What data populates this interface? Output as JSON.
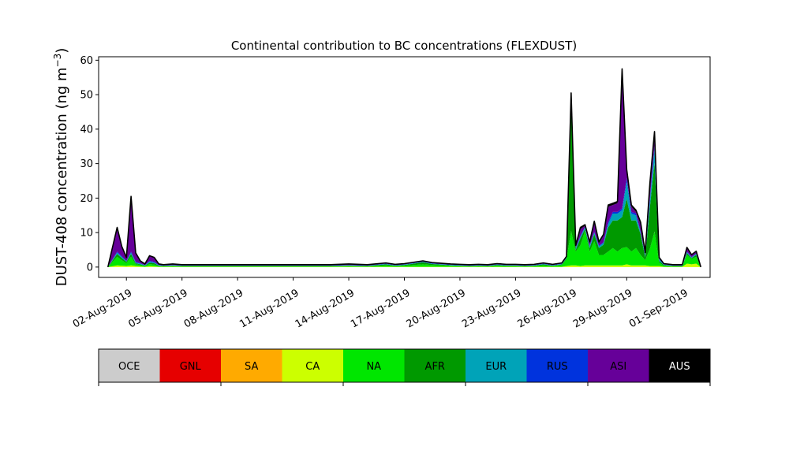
{
  "chart_data": {
    "type": "area",
    "stacked": true,
    "title": "Continental contribution to BC concentrations (FLEXDUST)",
    "ylabel_main": "DUST-408 concentration (ng m",
    "ylabel_sup": "−3",
    "ylabel_close": ")",
    "xlabel": "",
    "xlim": [
      "2019-07-31T12:00",
      "2019-09-02T12:00"
    ],
    "ylim": [
      -3,
      61
    ],
    "yticks": [
      0,
      10,
      20,
      30,
      40,
      50,
      60
    ],
    "xticks": [
      "2019-08-02",
      "2019-08-05",
      "2019-08-08",
      "2019-08-11",
      "2019-08-14",
      "2019-08-17",
      "2019-08-20",
      "2019-08-23",
      "2019-08-26",
      "2019-08-29",
      "2019-09-01"
    ],
    "xtick_labels": [
      "02-Aug-2019",
      "05-Aug-2019",
      "08-Aug-2019",
      "11-Aug-2019",
      "14-Aug-2019",
      "17-Aug-2019",
      "20-Aug-2019",
      "23-Aug-2019",
      "26-Aug-2019",
      "29-Aug-2019",
      "01-Sep-2019"
    ],
    "grid": false,
    "legend_position": "below",
    "legend": [
      {
        "name": "OCE",
        "color": "#cccccc"
      },
      {
        "name": "GNL",
        "color": "#e60000"
      },
      {
        "name": "SA",
        "color": "#ffaa00"
      },
      {
        "name": "CA",
        "color": "#ccff00"
      },
      {
        "name": "NA",
        "color": "#00e600"
      },
      {
        "name": "AFR",
        "color": "#009900"
      },
      {
        "name": "EUR",
        "color": "#00a3b8"
      },
      {
        "name": "RUS",
        "color": "#0033dd"
      },
      {
        "name": "ASI",
        "color": "#660099"
      },
      {
        "name": "AUS",
        "color": "#000000"
      }
    ],
    "x": [
      "2019-08-01T00:00",
      "2019-08-01T12:00",
      "2019-08-01T18:00",
      "2019-08-02T00:00",
      "2019-08-02T06:00",
      "2019-08-02T12:00",
      "2019-08-02T18:00",
      "2019-08-03T00:00",
      "2019-08-03T06:00",
      "2019-08-03T12:00",
      "2019-08-03T18:00",
      "2019-08-04T00:00",
      "2019-08-04T12:00",
      "2019-08-05T00:00",
      "2019-08-06T00:00",
      "2019-08-07T00:00",
      "2019-08-08T00:00",
      "2019-08-09T00:00",
      "2019-08-10T00:00",
      "2019-08-11T00:00",
      "2019-08-12T00:00",
      "2019-08-13T00:00",
      "2019-08-14T00:00",
      "2019-08-15T00:00",
      "2019-08-16T00:00",
      "2019-08-16T12:00",
      "2019-08-17T00:00",
      "2019-08-17T12:00",
      "2019-08-18T00:00",
      "2019-08-18T12:00",
      "2019-08-19T00:00",
      "2019-08-19T12:00",
      "2019-08-20T00:00",
      "2019-08-20T12:00",
      "2019-08-21T00:00",
      "2019-08-21T12:00",
      "2019-08-22T00:00",
      "2019-08-22T12:00",
      "2019-08-23T00:00",
      "2019-08-23T12:00",
      "2019-08-24T00:00",
      "2019-08-24T12:00",
      "2019-08-25T00:00",
      "2019-08-25T12:00",
      "2019-08-25T18:00",
      "2019-08-26T00:00",
      "2019-08-26T06:00",
      "2019-08-26T12:00",
      "2019-08-26T18:00",
      "2019-08-27T00:00",
      "2019-08-27T06:00",
      "2019-08-27T12:00",
      "2019-08-27T18:00",
      "2019-08-28T00:00",
      "2019-08-28T06:00",
      "2019-08-28T12:00",
      "2019-08-28T18:00",
      "2019-08-29T00:00",
      "2019-08-29T06:00",
      "2019-08-29T12:00",
      "2019-08-29T18:00",
      "2019-08-30T00:00",
      "2019-08-30T06:00",
      "2019-08-30T12:00",
      "2019-08-30T18:00",
      "2019-08-31T00:00",
      "2019-08-31T12:00",
      "2019-09-01T00:00",
      "2019-09-01T06:00",
      "2019-09-01T12:00",
      "2019-09-01T18:00",
      "2019-09-02T00:00"
    ],
    "series": [
      {
        "name": "CA",
        "values": [
          0,
          0.5,
          0.4,
          0.3,
          0.5,
          0.3,
          0.2,
          0.1,
          0.3,
          0.2,
          0.1,
          0.1,
          0.1,
          0.1,
          0.1,
          0.1,
          0.1,
          0.1,
          0.1,
          0.1,
          0.1,
          0.1,
          0.1,
          0.1,
          0.1,
          0.1,
          0.1,
          0.1,
          0.1,
          0.1,
          0.1,
          0.1,
          0.1,
          0.1,
          0.1,
          0.1,
          0.1,
          0.1,
          0.1,
          0.1,
          0.1,
          0.1,
          0.1,
          0.1,
          0.3,
          0.5,
          0.5,
          0.3,
          0.5,
          0.5,
          0.5,
          0.5,
          0.5,
          0.5,
          0.5,
          0.5,
          0.5,
          0.8,
          0.5,
          0.5,
          0.5,
          0.5,
          0.3,
          0.3,
          0.3,
          0.1,
          0.1,
          0.1,
          1.0,
          0.8,
          1.0,
          0
        ]
      },
      {
        "name": "NA",
        "values": [
          0,
          2.5,
          1.6,
          0.8,
          2.5,
          0.5,
          0.4,
          0.2,
          0.6,
          0.5,
          0.2,
          0.1,
          0.2,
          0.1,
          0.1,
          0.1,
          0.1,
          0.1,
          0.1,
          0.1,
          0.1,
          0.1,
          0.2,
          0.1,
          0.4,
          0.2,
          0.3,
          0.5,
          0.7,
          0.5,
          0.4,
          0.3,
          0.2,
          0.1,
          0.2,
          0.1,
          0.3,
          0.2,
          0.2,
          0.1,
          0.2,
          0.4,
          0.2,
          0.5,
          2.0,
          10.0,
          4.0,
          6.0,
          10.0,
          4.0,
          7.0,
          3.0,
          3.0,
          4.0,
          5.0,
          4.0,
          5.0,
          5.0,
          4.0,
          5.0,
          3.0,
          1.5,
          5.0,
          10.0,
          1.0,
          0.3,
          0.1,
          0.1,
          2.5,
          1.5,
          2.0,
          0
        ]
      },
      {
        "name": "AFR",
        "values": [
          0,
          0.8,
          0.6,
          0.4,
          0.8,
          0.3,
          0.2,
          0.1,
          0.4,
          0.4,
          0.1,
          0.1,
          0.1,
          0.1,
          0.1,
          0.1,
          0.1,
          0.1,
          0.1,
          0.1,
          0.1,
          0.1,
          0.1,
          0.1,
          0.3,
          0.1,
          0.2,
          0.4,
          0.6,
          0.3,
          0.2,
          0.1,
          0.1,
          0.1,
          0.1,
          0.1,
          0.2,
          0.1,
          0.1,
          0.1,
          0.1,
          0.3,
          0.1,
          0.2,
          0.3,
          36.0,
          0.5,
          2.0,
          0.5,
          1.0,
          2.0,
          2.0,
          3.0,
          7.0,
          8.0,
          9.0,
          9.0,
          14.0,
          9.0,
          8.0,
          6.0,
          0.8,
          12.0,
          20.0,
          0.5,
          0.2,
          0.1,
          0.1,
          0.5,
          0.3,
          0.5,
          0
        ]
      },
      {
        "name": "EUR",
        "values": [
          0,
          0.4,
          0.3,
          0.2,
          0.4,
          0.2,
          0.2,
          0.1,
          0.3,
          0.2,
          0.1,
          0.1,
          0.1,
          0.1,
          0.1,
          0.1,
          0.1,
          0.1,
          0.1,
          0.1,
          0.1,
          0.1,
          0.1,
          0.1,
          0.1,
          0.1,
          0.1,
          0.1,
          0.1,
          0.1,
          0.1,
          0.1,
          0.1,
          0.1,
          0.1,
          0.1,
          0.1,
          0.1,
          0.1,
          0.1,
          0.1,
          0.1,
          0.1,
          0.1,
          0.2,
          2.5,
          0.5,
          0.5,
          0.5,
          0.5,
          0.5,
          0.5,
          0.5,
          1.0,
          2.0,
          2.0,
          2.0,
          5.0,
          2.0,
          1.5,
          0.5,
          0.5,
          2.0,
          4.0,
          0.5,
          0.1,
          0.1,
          0.1,
          0.3,
          0.2,
          0.3,
          0
        ]
      },
      {
        "name": "RUS",
        "values": [
          0,
          0.3,
          0.2,
          0.1,
          0.3,
          0.2,
          0.1,
          0.1,
          0.2,
          0.2,
          0.1,
          0.1,
          0.1,
          0.1,
          0.1,
          0.1,
          0.1,
          0.1,
          0.1,
          0.1,
          0.1,
          0.1,
          0.1,
          0.1,
          0.1,
          0.1,
          0.1,
          0.1,
          0.1,
          0.1,
          0.1,
          0.1,
          0.1,
          0.1,
          0.1,
          0.1,
          0.1,
          0.1,
          0.1,
          0.1,
          0.1,
          0.1,
          0.1,
          0.1,
          0.1,
          0.5,
          0.2,
          0.2,
          0.2,
          0.2,
          0.2,
          0.2,
          0.2,
          0.5,
          0.5,
          0.5,
          0.5,
          1.0,
          0.5,
          0.5,
          0.2,
          0.2,
          0.5,
          1.0,
          0.2,
          0.1,
          0.1,
          0.1,
          0.2,
          0.1,
          0.1,
          0
        ]
      },
      {
        "name": "ASI",
        "values": [
          0,
          6.8,
          2.7,
          0.9,
          15.8,
          2.5,
          0.6,
          0.2,
          1.4,
          1.2,
          0.2,
          0.1,
          0.2,
          0.1,
          0.1,
          0.1,
          0.1,
          0.1,
          0.1,
          0.1,
          0.1,
          0.1,
          0.2,
          0.1,
          0.1,
          0.1,
          0.1,
          0.1,
          0.1,
          0.1,
          0.1,
          0.1,
          0.1,
          0.1,
          0.1,
          0.1,
          0.1,
          0.1,
          0.1,
          0.1,
          0.1,
          0.1,
          0.1,
          0.1,
          0.1,
          0.5,
          0.3,
          2.0,
          0.3,
          0.8,
          2.8,
          0.8,
          2.0,
          4.5,
          2.0,
          2.5,
          40.0,
          2.0,
          1.5,
          0.5,
          2.5,
          0.5,
          4.0,
          3.5,
          0.2,
          0.1,
          0.1,
          0.1,
          1.0,
          0.5,
          0.5,
          0
        ]
      },
      {
        "name": "AUS",
        "values": [
          0,
          0.2,
          0.2,
          0.1,
          0.2,
          0.1,
          0.1,
          0.1,
          0.1,
          0.1,
          0.1,
          0.1,
          0.1,
          0.1,
          0.1,
          0.1,
          0.1,
          0.1,
          0.1,
          0.1,
          0.1,
          0.1,
          0.1,
          0.1,
          0.1,
          0.1,
          0.1,
          0.1,
          0.1,
          0.1,
          0.1,
          0.1,
          0.1,
          0.1,
          0.1,
          0.1,
          0.1,
          0.1,
          0.1,
          0.1,
          0.1,
          0.1,
          0.1,
          0.1,
          0.1,
          0.5,
          0.3,
          0.5,
          0.3,
          0.3,
          0.3,
          0.3,
          0.3,
          0.5,
          0.5,
          0.5,
          0.5,
          0.5,
          0.5,
          0.5,
          0.3,
          0.2,
          0.5,
          0.5,
          0.1,
          0.1,
          0.1,
          0.1,
          0.2,
          0.2,
          0.2,
          0
        ]
      }
    ]
  }
}
